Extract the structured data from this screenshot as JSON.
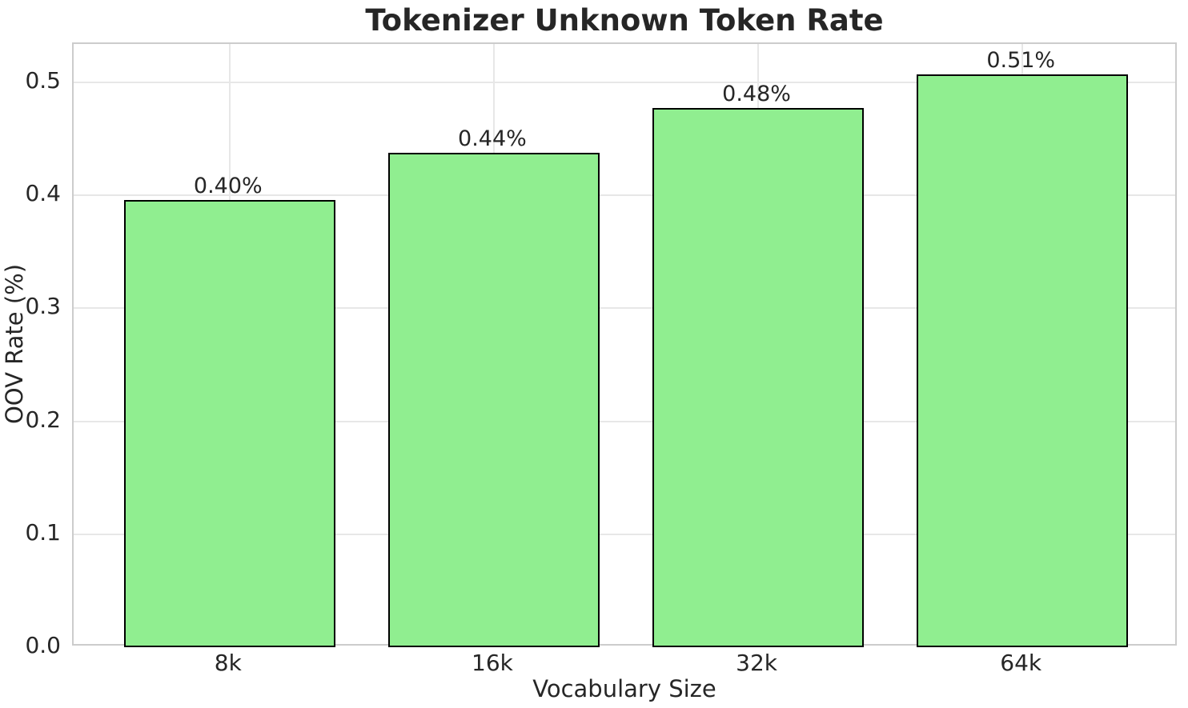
{
  "chart_data": {
    "type": "bar",
    "title": "Tokenizer Unknown Token Rate",
    "xlabel": "Vocabulary Size",
    "ylabel": "OOV Rate (%)",
    "categories": [
      "8k",
      "16k",
      "32k",
      "64k"
    ],
    "values": [
      0.396,
      0.438,
      0.477,
      0.507
    ],
    "bar_labels": [
      "0.40%",
      "0.44%",
      "0.48%",
      "0.51%"
    ],
    "yticks": [
      0.0,
      0.1,
      0.2,
      0.3,
      0.4,
      0.5
    ],
    "ytick_labels": [
      "0.0",
      "0.1",
      "0.2",
      "0.3",
      "0.4",
      "0.5"
    ],
    "ylim": [
      0,
      0.534
    ],
    "xlim": [
      -0.59,
      3.59
    ],
    "bar_width": 0.8,
    "grid": true,
    "legend": "none",
    "bar_color": "#90EE90",
    "bar_edge_color": "#000000"
  },
  "style": {
    "text_color": "#262626",
    "grid_color": "#e7e7e7",
    "spine_color": "#cccccc",
    "background": "#ffffff"
  }
}
